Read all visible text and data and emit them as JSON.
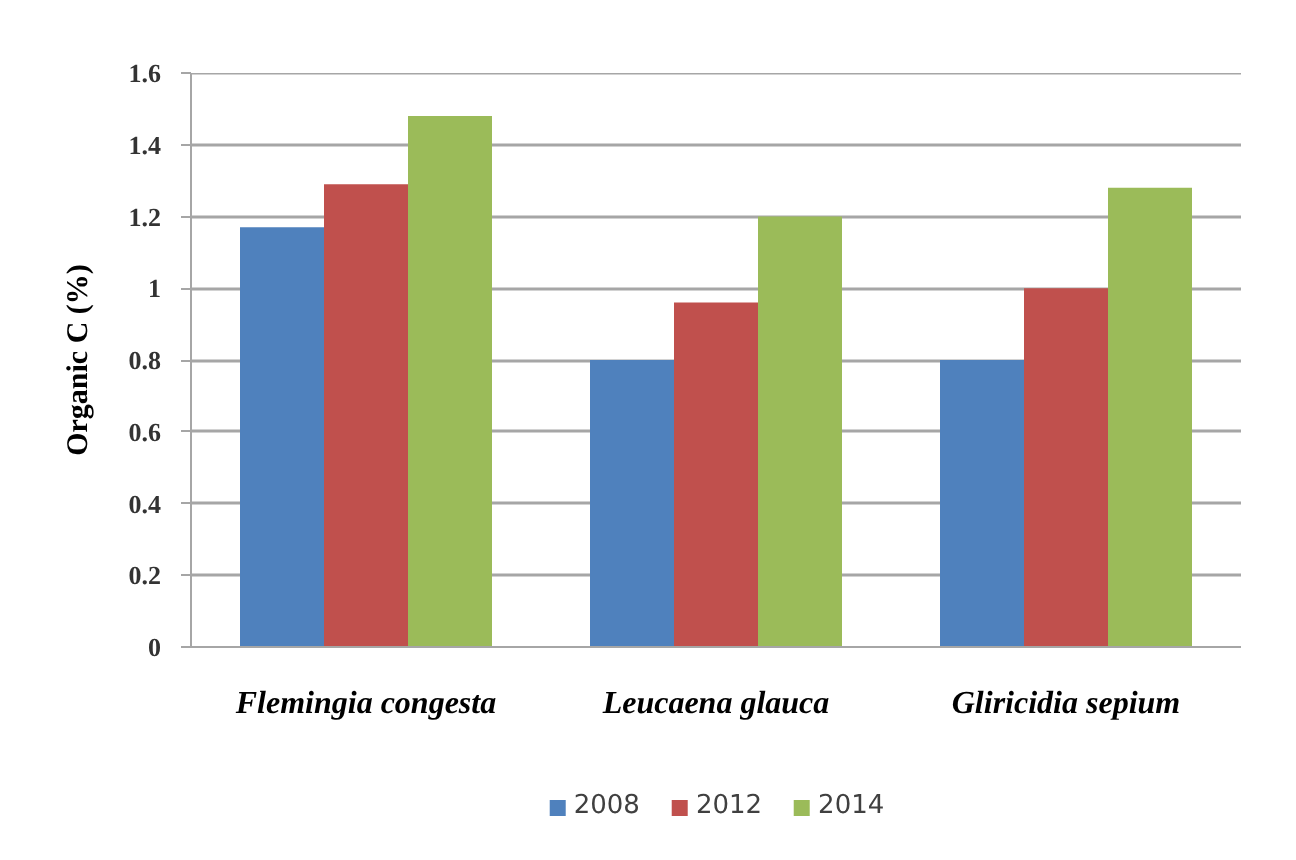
{
  "chart_data": {
    "type": "bar",
    "ylabel": "Organic C (%)",
    "categories": [
      "Flemingia congesta",
      "Leucaena glauca",
      "Gliricidia sepium"
    ],
    "series": [
      {
        "name": "2008",
        "color": "#4f81bd",
        "values": [
          1.17,
          0.8,
          0.8
        ]
      },
      {
        "name": "2012",
        "color": "#c0504d",
        "values": [
          1.29,
          0.96,
          1.0
        ]
      },
      {
        "name": "2014",
        "color": "#9bbb59",
        "values": [
          1.48,
          1.2,
          1.28
        ]
      }
    ],
    "ylim": [
      0,
      1.6
    ],
    "yticks": [
      0,
      0.2,
      0.4,
      0.6,
      0.8,
      1,
      1.2,
      1.4,
      1.6
    ],
    "grid": "y",
    "legend": "bottom"
  }
}
